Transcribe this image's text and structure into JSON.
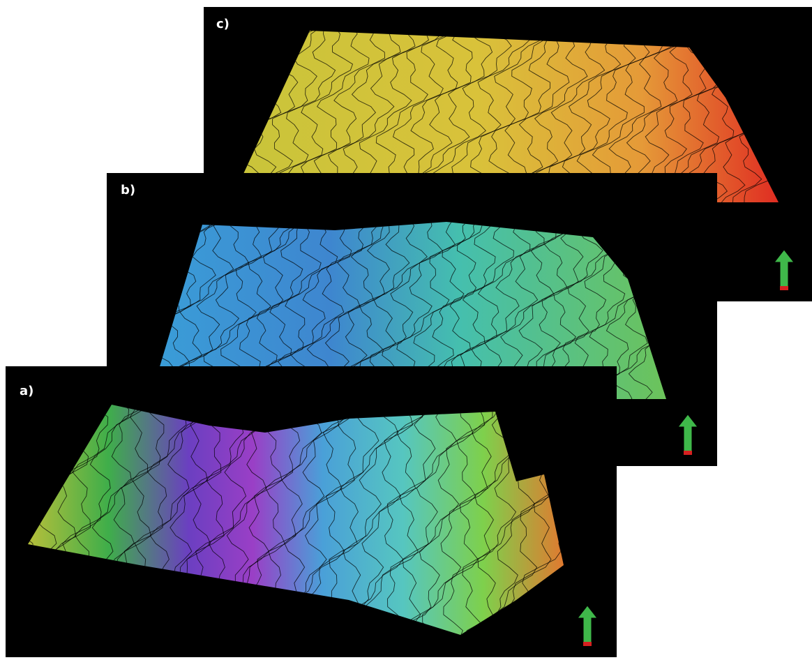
{
  "panels": [
    {
      "label": "c)"
    },
    {
      "label": "b)"
    },
    {
      "label": "a)"
    }
  ]
}
